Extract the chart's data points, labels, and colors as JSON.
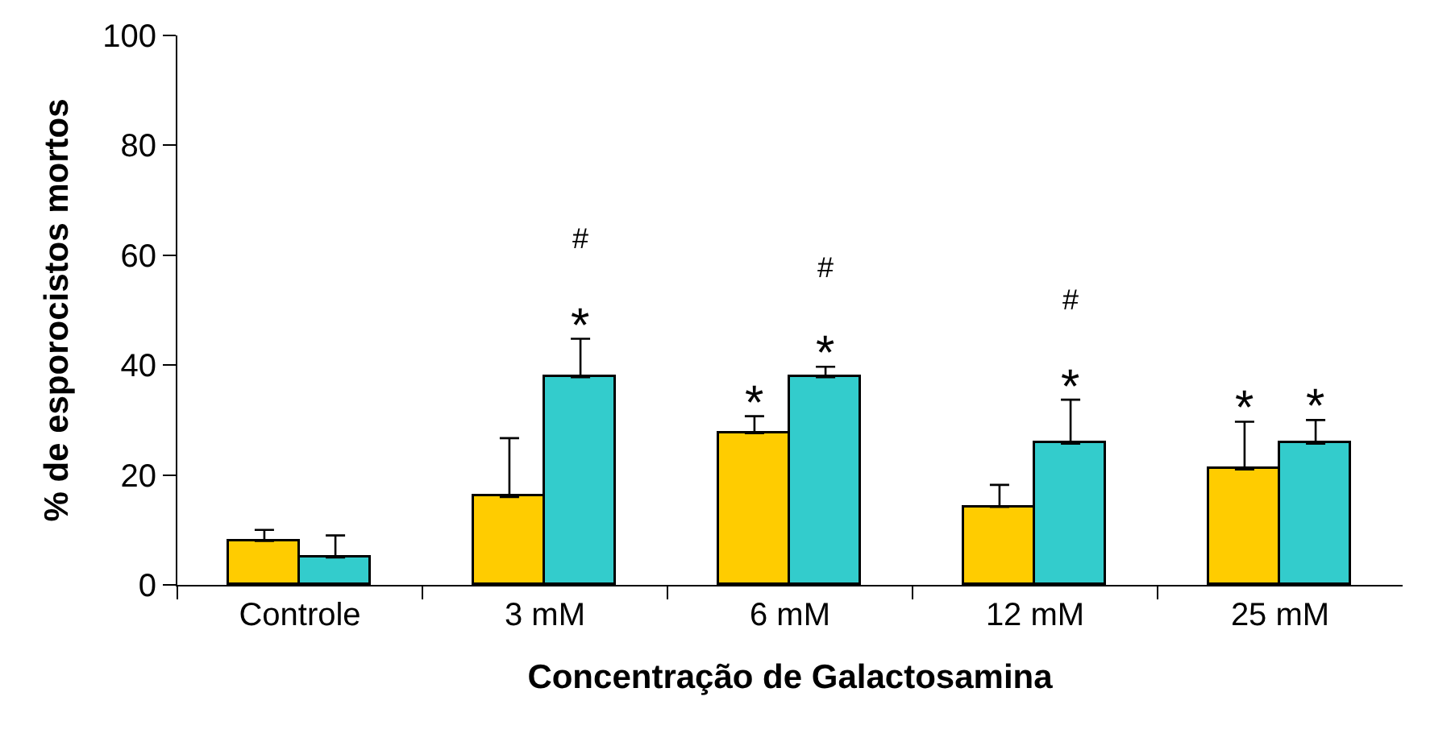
{
  "chart_data": {
    "type": "bar",
    "xlabel": "Concentração de Galactosamina",
    "ylabel": "% de esporocistos mortos",
    "categories": [
      "Controle",
      "3 mM",
      "6 mM",
      "12 mM",
      "25 mM"
    ],
    "series": [
      {
        "color": "#ffcc00",
        "values": [
          8,
          16,
          27.6,
          14.2,
          21
        ],
        "errors": [
          [
            8,
            10
          ],
          [
            16,
            26.7
          ],
          [
            27.6,
            30.7
          ],
          [
            14.2,
            18.2
          ],
          [
            21,
            29.7
          ]
        ]
      },
      {
        "color": "#33cccc",
        "values": [
          5,
          37.8,
          37.8,
          25.7,
          25.7
        ],
        "errors": [
          [
            5,
            9
          ],
          [
            37.8,
            44.8
          ],
          [
            37.8,
            39.7
          ],
          [
            25.7,
            33.7
          ],
          [
            25.7,
            30
          ]
        ]
      }
    ],
    "ylim": [
      0,
      100
    ],
    "yticks": [
      0,
      20,
      40,
      60,
      80,
      100
    ],
    "annotations": [
      "*",
      "#",
      "*",
      "*",
      "#",
      "*",
      "#",
      "*",
      "*"
    ]
  }
}
